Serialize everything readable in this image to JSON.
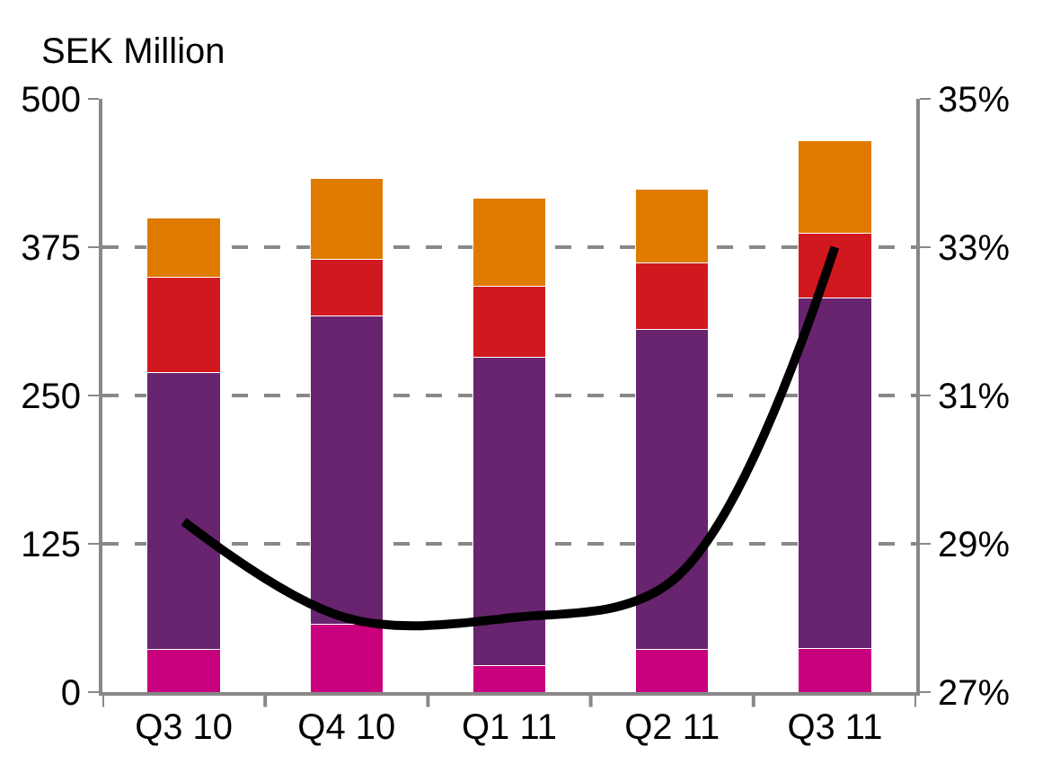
{
  "chart_data": {
    "type": "bar",
    "stacked": true,
    "ylabel": "SEK Million",
    "categories": [
      "Q3 10",
      "Q4 10",
      "Q1 11",
      "Q2 11",
      "Q3 11"
    ],
    "series": [
      {
        "color": "#c8007e",
        "values": [
          36,
          57,
          22,
          36,
          37
        ]
      },
      {
        "color": "#68246f",
        "values": [
          233,
          260,
          260,
          270,
          295
        ]
      },
      {
        "color": "#d2181f",
        "values": [
          81,
          48,
          60,
          56,
          55
        ]
      },
      {
        "color": "#e07b00",
        "values": [
          50,
          68,
          74,
          62,
          78
        ]
      },
      {
        "type": "line",
        "axis": "y2",
        "color": "#000000",
        "values": [
          29.3,
          28.0,
          28.0,
          28.5,
          33.0
        ]
      }
    ],
    "ylim": [
      0,
      500
    ],
    "yticks": [
      0,
      125,
      250,
      375,
      500
    ],
    "y2lim": [
      27,
      35
    ],
    "y2ticks": [
      {
        "value": 27,
        "label": "27%"
      },
      {
        "value": 29,
        "label": "29%"
      },
      {
        "value": 31,
        "label": "31%"
      },
      {
        "value": 33,
        "label": "33%"
      },
      {
        "value": 35,
        "label": "35%"
      }
    ],
    "grid": "y",
    "legend": false,
    "line_style": "solid",
    "marker": "none"
  }
}
